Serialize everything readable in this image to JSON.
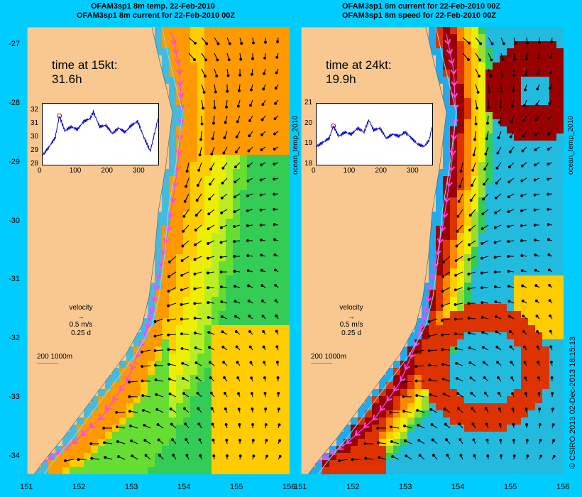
{
  "charts": [
    {
      "title_line1": "OFAM3sp1 8m temp. 22-Feb-2010",
      "title_line2": "OFAM3sp1 8m current for 22-Feb-2010 00Z",
      "time_label": "time at 15kt:",
      "time_value": "31.6h",
      "side_label": "",
      "inset": {
        "yticks": [
          "32",
          "31",
          "30",
          "29",
          "28"
        ],
        "xticks": [
          "0",
          "100",
          "200",
          "300"
        ]
      },
      "velocity_label": "velocity",
      "velocity_speed": "0.5 m/s",
      "velocity_time": "0.25 d",
      "depth_scale": "200  1000m"
    },
    {
      "title_line1": "OFAM3sp1 8m current for 22-Feb-2010 00Z",
      "title_line2": "OFAM3sp1 8m speed for 22-Feb-2010 00Z",
      "time_label": "time at 24kt:",
      "time_value": "19.9h",
      "side_label": "ocean_temp_2010",
      "inset": {
        "yticks": [
          "21",
          "20",
          "19",
          "18"
        ],
        "xticks": [
          "0",
          "100",
          "200",
          "300"
        ]
      },
      "velocity_label": "velocity",
      "velocity_speed": "0.5 m/s",
      "velocity_time": "0.25 d",
      "depth_scale": "200  1000m"
    }
  ],
  "left_side_label": "ocean_temp_2010",
  "credit": "© CSIRO 2013  02-Dec-2013 18:15:13",
  "chart_data": [
    {
      "type": "heatmap",
      "title": "OFAM3sp1 8m temp. 22-Feb-2010",
      "xlim": [
        151,
        156
      ],
      "ylim": [
        -34.3,
        -26.7
      ],
      "xticks": [
        151,
        152,
        153,
        154,
        155,
        156
      ],
      "yticks": [
        -27,
        -28,
        -29,
        -30,
        -31,
        -32,
        -33,
        -34
      ],
      "inset_series": {
        "xlim": [
          0,
          365
        ],
        "ylim": [
          28,
          32.5
        ],
        "marker": {
          "x": 53,
          "y": 31.6
        },
        "values_x": [
          0,
          20,
          40,
          53,
          70,
          90,
          110,
          130,
          150,
          160,
          180,
          200,
          220,
          240,
          260,
          280,
          300,
          320,
          340,
          355,
          365
        ],
        "values_y": [
          28.7,
          29.3,
          30.0,
          31.6,
          30.5,
          30.8,
          30.6,
          31.2,
          31.4,
          31.9,
          30.8,
          30.9,
          30.3,
          30.7,
          30.4,
          30.9,
          31.2,
          30.0,
          29.0,
          30.5,
          31.5
        ]
      }
    },
    {
      "type": "heatmap",
      "title": "OFAM3sp1 8m speed for 22-Feb-2010 00Z",
      "xlim": [
        151,
        156
      ],
      "ylim": [
        -34.3,
        -26.7
      ],
      "xticks": [
        151,
        152,
        153,
        154,
        155,
        156
      ],
      "yticks": [
        -27,
        -28,
        -29,
        -30,
        -31,
        -32,
        -33,
        -34
      ],
      "inset_series": {
        "xlim": [
          0,
          365
        ],
        "ylim": [
          18,
          21
        ],
        "marker": {
          "x": 53,
          "y": 19.9
        },
        "values_x": [
          0,
          20,
          40,
          53,
          70,
          90,
          110,
          130,
          150,
          165,
          180,
          200,
          220,
          240,
          260,
          280,
          300,
          320,
          340,
          355,
          365
        ],
        "values_y": [
          18.9,
          19.1,
          19.3,
          19.9,
          19.4,
          19.6,
          19.5,
          19.8,
          19.6,
          20.2,
          19.7,
          19.8,
          19.3,
          19.5,
          19.4,
          19.6,
          19.3,
          19.0,
          18.9,
          19.2,
          19.9
        ]
      }
    }
  ]
}
